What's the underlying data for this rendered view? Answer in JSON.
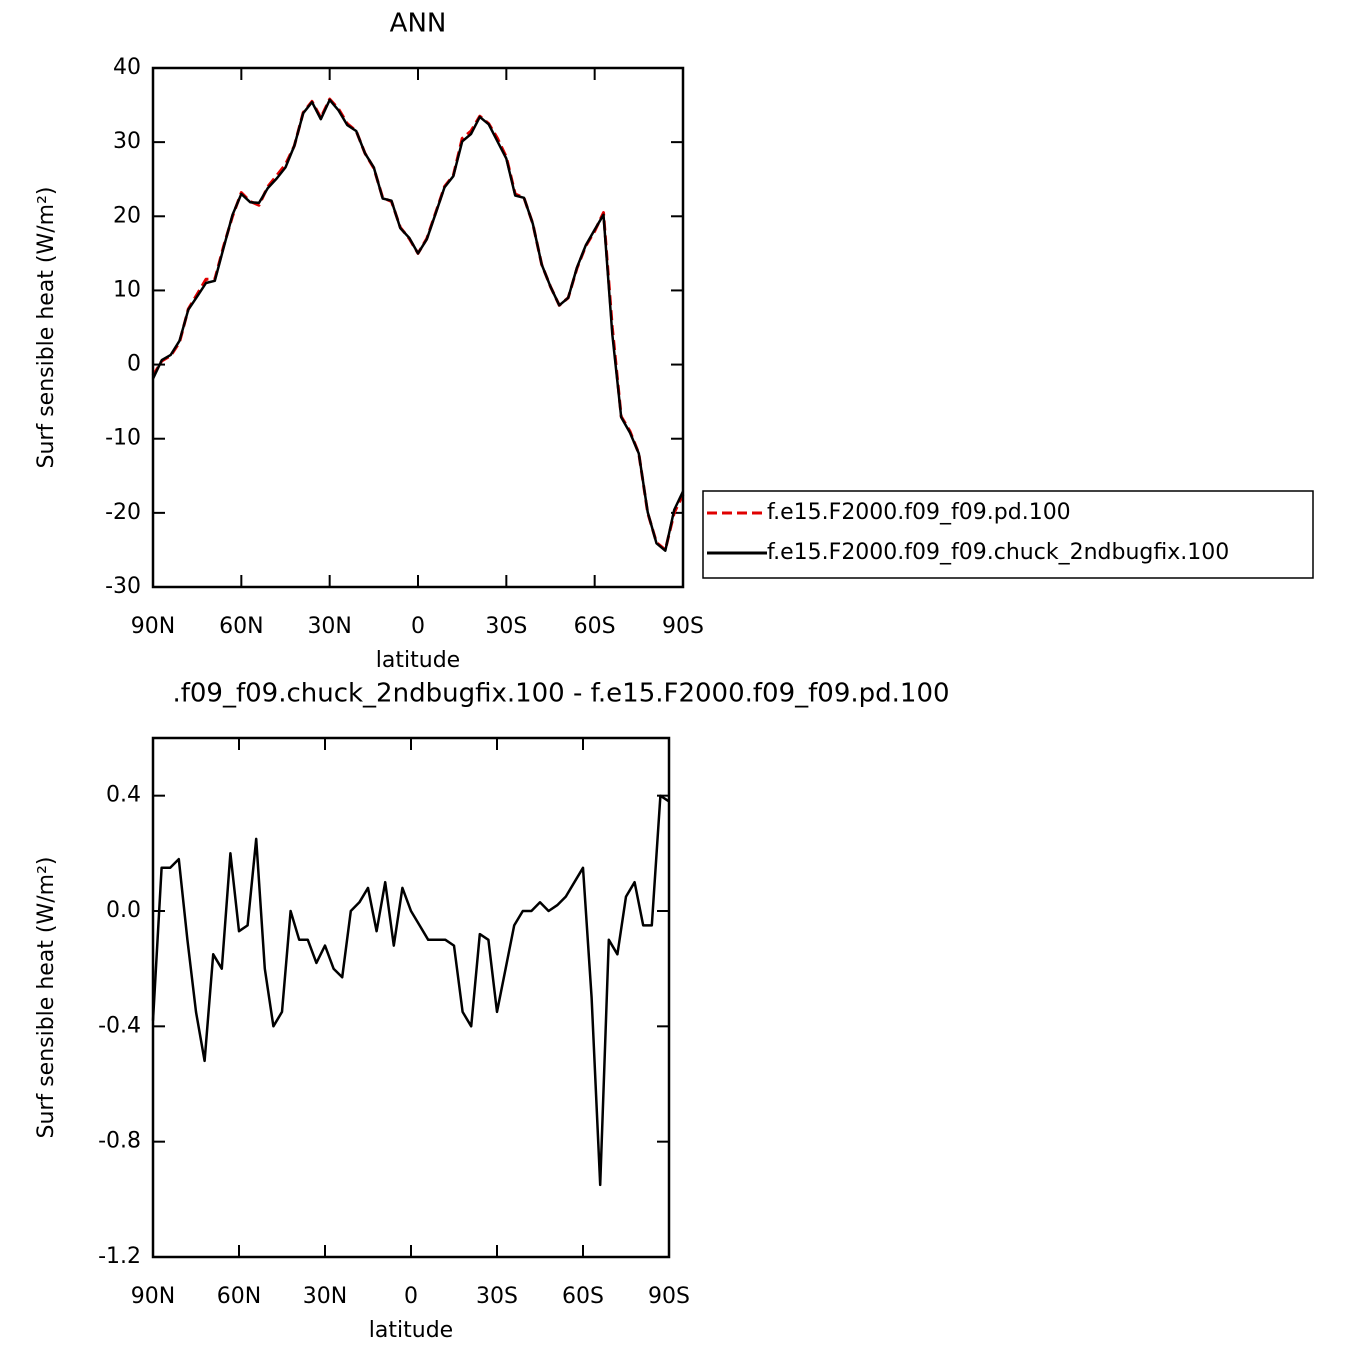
{
  "chart_data": [
    {
      "type": "line",
      "title": "ANN",
      "xlabel": "latitude",
      "ylabel": "Surf sensible heat (W/m²)",
      "x": [
        90,
        87,
        84,
        81,
        78,
        75,
        72,
        69,
        66,
        63,
        60,
        57,
        54,
        51,
        48,
        45,
        42,
        39,
        36,
        33,
        30,
        27,
        24,
        21,
        18,
        15,
        12,
        9,
        6,
        3,
        0,
        -3,
        -6,
        -9,
        -12,
        -15,
        -18,
        -21,
        -24,
        -27,
        -30,
        -33,
        -36,
        -39,
        -42,
        -45,
        -48,
        -51,
        -54,
        -57,
        -60,
        -63,
        -66,
        -69,
        -72,
        -75,
        -78,
        -81,
        -84,
        -87,
        -90
      ],
      "series": [
        {
          "name": "f.e15.F2000.f09_f09.pd.100",
          "color": "#e00000",
          "line_style": "dashed",
          "values": [
            -1.5,
            0.5,
            1.2,
            3.0,
            7.5,
            9.5,
            11.5,
            11.5,
            16,
            20,
            23.2,
            22,
            21.5,
            24,
            25.5,
            27,
            29.5,
            34,
            35.5,
            33.3,
            35.8,
            34.5,
            32.5,
            31.5,
            28.5,
            26.5,
            22.5,
            22,
            18.5,
            17,
            15,
            17,
            20.5,
            24,
            25.5,
            30.5,
            31.5,
            33.5,
            32.5,
            30.5,
            28,
            23,
            22.5,
            19,
            13.5,
            10.5,
            8,
            9,
            13,
            16,
            18,
            20.5,
            5,
            -7,
            -9,
            -12,
            -20,
            -24,
            -25,
            -20,
            -17.5
          ]
        },
        {
          "name": "f.e15.F2000.f09_f09.chuck_2ndbugfix.100",
          "color": "#000000",
          "line_style": "solid",
          "values": [
            -1.9,
            0.6,
            1.3,
            3.2,
            7.4,
            9.2,
            11.0,
            11.3,
            15.8,
            20.2,
            23.0,
            21.9,
            21.8,
            23.8,
            25.1,
            26.6,
            29.5,
            33.9,
            35.4,
            33.1,
            35.7,
            34.3,
            32.3,
            31.5,
            28.5,
            26.6,
            22.4,
            22.1,
            18.4,
            17.1,
            15,
            16.9,
            20.4,
            23.9,
            25.4,
            30.1,
            31.1,
            33.4,
            32.4,
            30.1,
            27.8,
            22.8,
            22.5,
            19,
            13.5,
            10.5,
            8,
            9,
            13.1,
            16.1,
            18.2,
            20.2,
            4.1,
            -7.1,
            -9.2,
            -12,
            -19.9,
            -24.1,
            -25.1,
            -19.6,
            -17.1
          ]
        }
      ],
      "xlim": [
        90,
        -90
      ],
      "ylim": [
        -30,
        40
      ],
      "xticks": [
        {
          "value": 90,
          "label": "90N"
        },
        {
          "value": 60,
          "label": "60N"
        },
        {
          "value": 30,
          "label": "30N"
        },
        0,
        {
          "value": -30,
          "label": "30S"
        },
        {
          "value": -60,
          "label": "60S"
        },
        {
          "value": -90,
          "label": "90S"
        }
      ],
      "yticks": [
        -30,
        -20,
        -10,
        0,
        10,
        20,
        30,
        40
      ],
      "legend": "right"
    },
    {
      "type": "line",
      "title": ".f09_f09.chuck_2ndbugfix.100 - f.e15.F2000.f09_f09.pd.100",
      "xlabel": "latitude",
      "ylabel": "Surf sensible heat (W/m²)",
      "x": [
        90,
        87,
        84,
        81,
        78,
        75,
        72,
        69,
        66,
        63,
        60,
        57,
        54,
        51,
        48,
        45,
        42,
        39,
        36,
        33,
        30,
        27,
        24,
        21,
        18,
        15,
        12,
        9,
        6,
        3,
        0,
        -3,
        -6,
        -9,
        -12,
        -15,
        -18,
        -21,
        -24,
        -27,
        -30,
        -33,
        -36,
        -39,
        -42,
        -45,
        -48,
        -51,
        -54,
        -57,
        -60,
        -63,
        -66,
        -69,
        -72,
        -75,
        -78,
        -81,
        -84,
        -87,
        -90
      ],
      "series": [
        {
          "name": null,
          "color": "#000000",
          "line_style": "solid",
          "values": [
            -0.38,
            0.15,
            0.15,
            0.18,
            -0.1,
            -0.35,
            -0.52,
            -0.15,
            -0.2,
            0.2,
            -0.07,
            -0.05,
            0.25,
            -0.2,
            -0.4,
            -0.35,
            0,
            -0.1,
            -0.1,
            -0.18,
            -0.12,
            -0.2,
            -0.23,
            0,
            0.03,
            0.08,
            -0.07,
            0.1,
            -0.12,
            0.08,
            0,
            -0.05,
            -0.1,
            -0.1,
            -0.1,
            -0.12,
            -0.35,
            -0.4,
            -0.08,
            -0.1,
            -0.35,
            -0.2,
            -0.05,
            0,
            0,
            0.03,
            0,
            0.02,
            0.05,
            0.1,
            0.15,
            -0.3,
            -0.95,
            -0.1,
            -0.15,
            0.05,
            0.1,
            -0.05,
            -0.05,
            0.4,
            0.38
          ]
        }
      ],
      "xlim": [
        90,
        -90
      ],
      "ylim": [
        -1.2,
        0.6
      ],
      "xticks": [
        {
          "value": 90,
          "label": "90N"
        },
        {
          "value": 60,
          "label": "60N"
        },
        {
          "value": 30,
          "label": "30N"
        },
        0,
        {
          "value": -30,
          "label": "30S"
        },
        {
          "value": -60,
          "label": "60S"
        },
        {
          "value": -90,
          "label": "90S"
        }
      ],
      "yticks": [
        -1.2,
        -0.8,
        -0.4,
        {
          "value": 0,
          "label": "0.0"
        },
        0.4
      ]
    }
  ]
}
